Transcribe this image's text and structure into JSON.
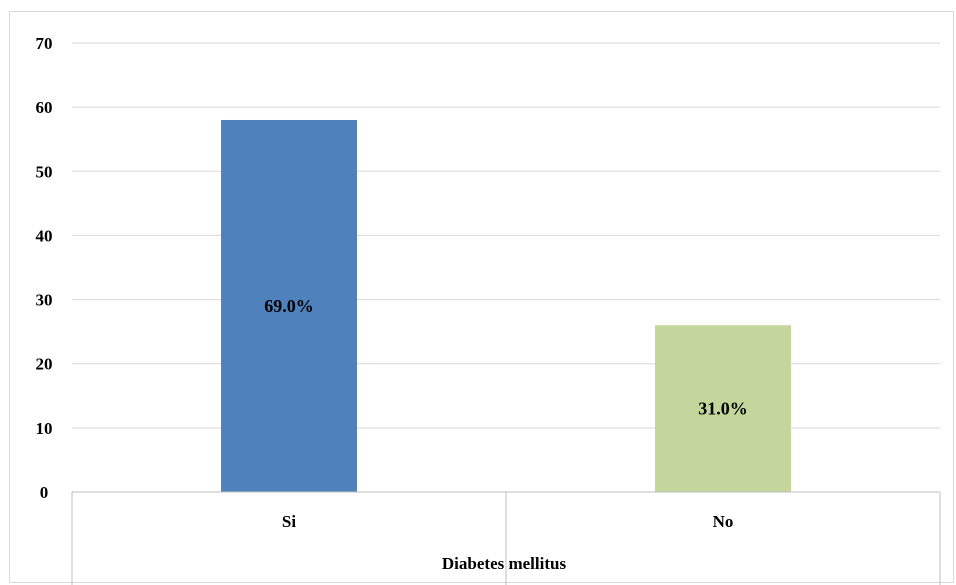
{
  "chart_data": {
    "type": "bar",
    "categories": [
      "Si",
      "No"
    ],
    "values": [
      58,
      26
    ],
    "data_labels": [
      "69.0%",
      "31.0%"
    ],
    "colors": [
      "#4f81bd",
      "#c3d69b"
    ],
    "ylim": [
      0,
      70
    ],
    "yticks": [
      0,
      10,
      20,
      30,
      40,
      50,
      60,
      70
    ],
    "xlabel": "Diabetes mellitus",
    "ylabel": "",
    "grid": true,
    "legend": "none"
  }
}
